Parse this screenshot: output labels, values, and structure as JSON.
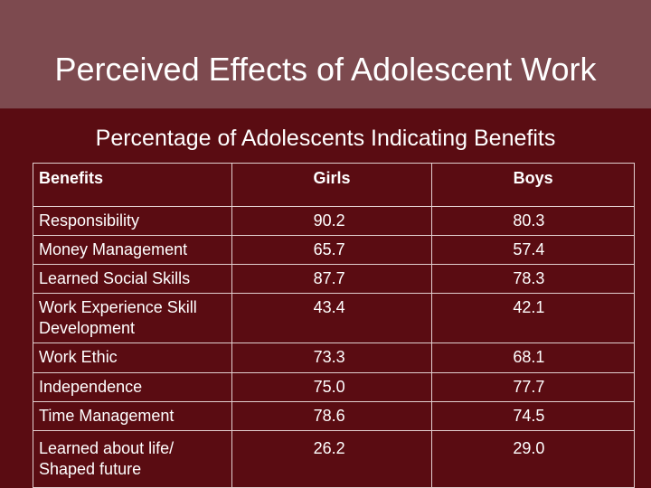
{
  "slide": {
    "title": "Perceived Effects of Adolescent Work",
    "subtitle": "Percentage of Adolescents Indicating Benefits"
  },
  "table": {
    "headers": [
      "Benefits",
      "Girls",
      "Boys"
    ],
    "rows": [
      {
        "benefit": "Responsibility",
        "girls": "90.2",
        "boys": "80.3"
      },
      {
        "benefit": "Money Management",
        "girls": "65.7",
        "boys": "57.4"
      },
      {
        "benefit": "Learned Social Skills",
        "girls": "87.7",
        "boys": "78.3"
      },
      {
        "benefit": "Work Experience Skill Development",
        "girls": "43.4",
        "boys": "42.1"
      },
      {
        "benefit": "Work Ethic",
        "girls": "73.3",
        "boys": "68.1"
      },
      {
        "benefit": "Independence",
        "girls": "75.0",
        "boys": "77.7"
      },
      {
        "benefit": "Time Management",
        "girls": "78.6",
        "boys": "74.5"
      },
      {
        "benefit": "Learned about life/ Shaped future",
        "girls": "26.2",
        "boys": "29.0"
      }
    ]
  },
  "colors": {
    "background": "#5a0c12",
    "title_bar": "#7d4a4f",
    "text": "#ffffff"
  }
}
